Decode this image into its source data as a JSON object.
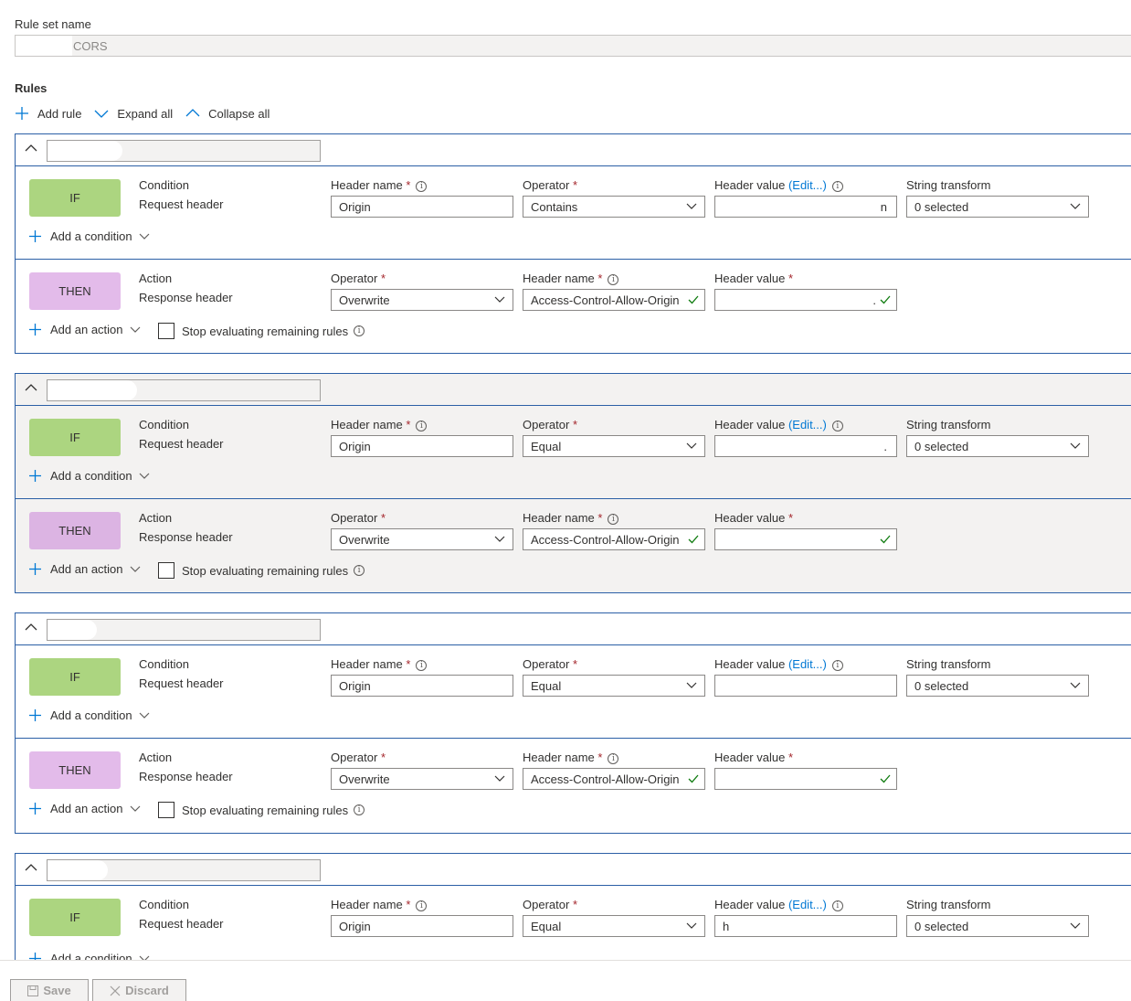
{
  "ruleset": {
    "label": "Rule set name",
    "value": "CORS"
  },
  "rules_label": "Rules",
  "toolbar": {
    "add_rule": "Add rule",
    "expand_all": "Expand all",
    "collapse_all": "Collapse all"
  },
  "labels": {
    "if": "IF",
    "then": "THEN",
    "condition": "Condition",
    "request_header": "Request header",
    "action": "Action",
    "response_header": "Response header",
    "header_name": "Header name",
    "operator": "Operator",
    "header_value": "Header value",
    "edit": "(Edit...)",
    "string_transform": "String transform",
    "add_condition": "Add a condition",
    "add_action": "Add an action",
    "stop_evaluating": "Stop evaluating remaining rules",
    "required": "*",
    "info": "i"
  },
  "rules": [
    {
      "condition": {
        "header_name": "Origin",
        "operator": "Contains",
        "header_value_tail": "n",
        "string_transform": "0 selected"
      },
      "action": {
        "operator": "Overwrite",
        "header_name": "Access-Control-Allow-Origin",
        "header_value_tail": "."
      }
    },
    {
      "condition": {
        "header_name": "Origin",
        "operator": "Equal",
        "header_value_tail": ".",
        "string_transform": "0 selected"
      },
      "action": {
        "operator": "Overwrite",
        "header_name": "Access-Control-Allow-Origin",
        "header_value_tail": ""
      }
    },
    {
      "condition": {
        "header_name": "Origin",
        "operator": "Equal",
        "header_value_tail": "",
        "string_transform": "0 selected"
      },
      "action": {
        "operator": "Overwrite",
        "header_name": "Access-Control-Allow-Origin",
        "header_value_tail": ""
      }
    },
    {
      "condition": {
        "header_name": "Origin",
        "operator": "Equal",
        "header_value_head": "h",
        "string_transform": "0 selected"
      }
    }
  ],
  "footer": {
    "save": "Save",
    "discard": "Discard"
  }
}
